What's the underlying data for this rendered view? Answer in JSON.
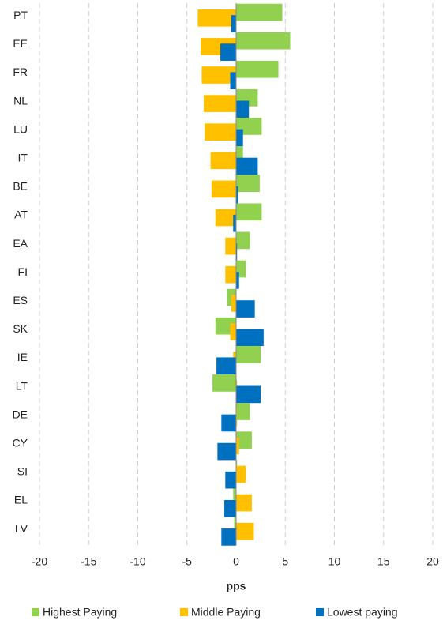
{
  "chart_data": {
    "type": "hbar",
    "categories": [
      "PT",
      "EE",
      "FR",
      "NL",
      "LU",
      "IT",
      "BE",
      "AT",
      "EA",
      "FI",
      "ES",
      "SK",
      "IE",
      "LT",
      "DE",
      "CY",
      "SI",
      "EL",
      "LV"
    ],
    "series": [
      {
        "name": "Highest Paying",
        "color": "#92d050",
        "values": [
          4.7,
          5.5,
          4.3,
          2.2,
          2.6,
          0.7,
          2.4,
          2.6,
          1.4,
          1.0,
          -0.9,
          -2.1,
          2.5,
          -2.4,
          1.4,
          1.6,
          0.1,
          -0.3,
          -0.2
        ]
      },
      {
        "name": "Middle Paying",
        "color": "#ffc000",
        "values": [
          -3.9,
          -3.6,
          -3.5,
          -3.3,
          -3.2,
          -2.6,
          -2.5,
          -2.1,
          -1.1,
          -1.1,
          -0.5,
          -0.6,
          -0.3,
          0.1,
          0.1,
          0.3,
          1.0,
          1.6,
          1.8
        ]
      },
      {
        "name": "Lowest paying",
        "color": "#0070c0",
        "values": [
          -0.5,
          -1.6,
          -0.6,
          1.3,
          0.7,
          2.2,
          0.2,
          -0.3,
          0.1,
          0.3,
          1.9,
          2.8,
          -2.0,
          2.5,
          -1.5,
          -1.9,
          -1.1,
          -1.2,
          -1.5
        ]
      }
    ],
    "xlabel": "pps",
    "xlim": [
      -20,
      20
    ],
    "xticks": [
      -20,
      -15,
      -10,
      -5,
      0,
      5,
      10,
      15,
      20
    ],
    "grid": true
  }
}
